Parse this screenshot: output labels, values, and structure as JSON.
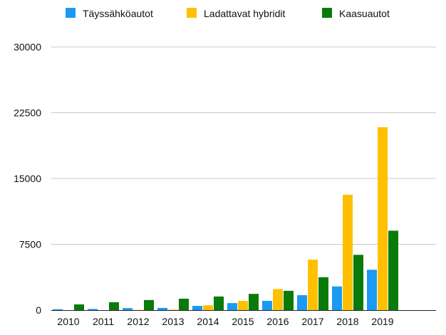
{
  "chart_data": {
    "type": "bar",
    "categories": [
      "2010",
      "2011",
      "2012",
      "2013",
      "2014",
      "2015",
      "2016",
      "2017",
      "2018",
      "2019"
    ],
    "series": [
      {
        "name": "Täyssähköautot",
        "color": "#1a9af2",
        "values": [
          100,
          130,
          230,
          250,
          480,
          800,
          1050,
          1700,
          2700,
          4600
        ]
      },
      {
        "name": "Ladattavat hybridit",
        "color": "#ffc000",
        "values": [
          0,
          0,
          20,
          50,
          550,
          1050,
          2400,
          5750,
          13150,
          20850
        ]
      },
      {
        "name": "Kaasuautot",
        "color": "#0a7a0a",
        "values": [
          650,
          900,
          1150,
          1300,
          1550,
          1850,
          2200,
          3750,
          6300,
          9050
        ]
      }
    ],
    "yticks": [
      0,
      7500,
      15000,
      22500,
      30000
    ],
    "ylim": [
      0,
      30000
    ],
    "grid": true,
    "legend": "top"
  }
}
